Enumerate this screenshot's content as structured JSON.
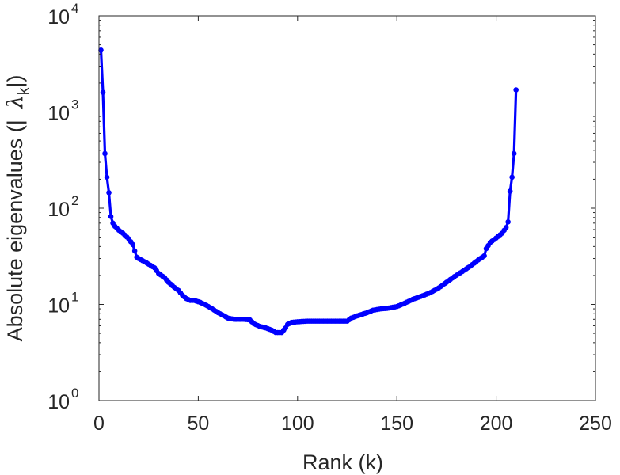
{
  "chart_data": {
    "type": "line",
    "title": "",
    "xlabel": "Rank (k)",
    "ylabel": "Absolute eigenvalues (|λk|)",
    "ylabel_parts": {
      "prefix": "Absolute eigenvalues (|",
      "lambda": "λ",
      "sub": "k",
      "suffix": "|)"
    },
    "xlim": [
      0,
      250
    ],
    "ylim": [
      1,
      10000
    ],
    "yscale": "log",
    "grid": false,
    "legend": "none",
    "line_color": "#0000ff",
    "marker": "circle",
    "x_ticks": [
      {
        "value": 0,
        "label": "0"
      },
      {
        "value": 50,
        "label": "50"
      },
      {
        "value": 100,
        "label": "100"
      },
      {
        "value": 150,
        "label": "150"
      },
      {
        "value": 200,
        "label": "200"
      },
      {
        "value": 250,
        "label": "250"
      }
    ],
    "y_ticks": [
      {
        "value": 1,
        "base": "10",
        "exp": "0"
      },
      {
        "value": 10,
        "base": "10",
        "exp": "1"
      },
      {
        "value": 100,
        "base": "10",
        "exp": "2"
      },
      {
        "value": 1000,
        "base": "10",
        "exp": "3"
      },
      {
        "value": 10000,
        "base": "10",
        "exp": "4"
      }
    ],
    "series": [
      {
        "anchors": [
          [
            1,
            4400
          ],
          [
            2,
            1600
          ],
          [
            3,
            370
          ],
          [
            4,
            210
          ],
          [
            5,
            145
          ],
          [
            6,
            82
          ],
          [
            7,
            70
          ],
          [
            8,
            65
          ],
          [
            10,
            59
          ],
          [
            12,
            55
          ],
          [
            15,
            48
          ],
          [
            17,
            42
          ],
          [
            18,
            36
          ],
          [
            19,
            31
          ],
          [
            20,
            30
          ],
          [
            24,
            27
          ],
          [
            28,
            24
          ],
          [
            30,
            21
          ],
          [
            33,
            19
          ],
          [
            35,
            17
          ],
          [
            38,
            15
          ],
          [
            40,
            14
          ],
          [
            42,
            12.5
          ],
          [
            44,
            11.5
          ],
          [
            46,
            11
          ],
          [
            48,
            11
          ],
          [
            51,
            10.5
          ],
          [
            54,
            9.8
          ],
          [
            57,
            9
          ],
          [
            60,
            8.2
          ],
          [
            63,
            7.6
          ],
          [
            65,
            7.2
          ],
          [
            68,
            7
          ],
          [
            73,
            7
          ],
          [
            76,
            6.9
          ],
          [
            78,
            6.3
          ],
          [
            81,
            5.9
          ],
          [
            84,
            5.7
          ],
          [
            87,
            5.4
          ],
          [
            89,
            5.1
          ],
          [
            92,
            5.1
          ],
          [
            94,
            5.7
          ],
          [
            95,
            6.2
          ],
          [
            97,
            6.5
          ],
          [
            100,
            6.6
          ],
          [
            105,
            6.7
          ],
          [
            115,
            6.7
          ],
          [
            125,
            6.7
          ],
          [
            127,
            7.2
          ],
          [
            130,
            7.6
          ],
          [
            135,
            8.2
          ],
          [
            138,
            8.7
          ],
          [
            142,
            9
          ],
          [
            145,
            9.1
          ],
          [
            150,
            9.5
          ],
          [
            154,
            10.3
          ],
          [
            158,
            11.3
          ],
          [
            163,
            12.3
          ],
          [
            167,
            13.3
          ],
          [
            171,
            14.8
          ],
          [
            175,
            17
          ],
          [
            179,
            19.5
          ],
          [
            183,
            22
          ],
          [
            187,
            25
          ],
          [
            191,
            29
          ],
          [
            194,
            32
          ],
          [
            195,
            38
          ],
          [
            197,
            44
          ],
          [
            200,
            49
          ],
          [
            203,
            55
          ],
          [
            205,
            63
          ],
          [
            206,
            72
          ],
          [
            207,
            150
          ],
          [
            208,
            210
          ],
          [
            209,
            370
          ],
          [
            210,
            1700
          ]
        ]
      }
    ]
  }
}
